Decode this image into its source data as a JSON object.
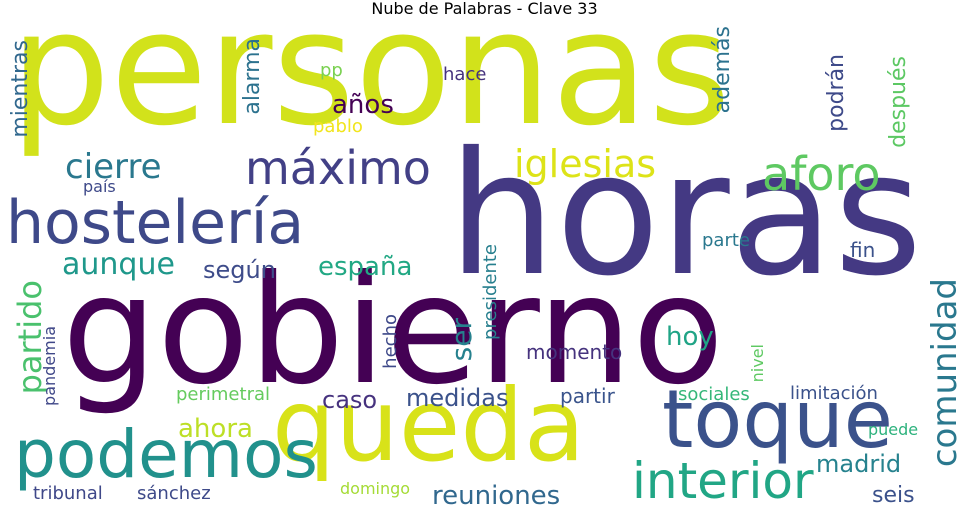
{
  "title": "Nube de Palabras - Clave 33",
  "words": [
    {
      "text": "personas",
      "color": "#d2e21b"
    },
    {
      "text": "horas",
      "color": "#443983"
    },
    {
      "text": "gobierno",
      "color": "#440154"
    },
    {
      "text": "queda",
      "color": "#d8e219"
    },
    {
      "text": "toque",
      "color": "#3b528b"
    },
    {
      "text": "podemos",
      "color": "#21918c"
    },
    {
      "text": "hostelería",
      "color": "#3e4989"
    },
    {
      "text": "interior",
      "color": "#21a685"
    },
    {
      "text": "máximo",
      "color": "#424086"
    },
    {
      "text": "aforo",
      "color": "#5ec962"
    },
    {
      "text": "cierre",
      "color": "#2a788e"
    },
    {
      "text": "iglesias",
      "color": "#dde318"
    },
    {
      "text": "comunidad",
      "color": "#2a788e"
    },
    {
      "text": "partido",
      "color": "#4ac16d"
    },
    {
      "text": "aunque",
      "color": "#1f988b"
    },
    {
      "text": "según",
      "color": "#3e4c8a"
    },
    {
      "text": "españa",
      "color": "#22a884"
    },
    {
      "text": "reuniones",
      "color": "#31688e"
    },
    {
      "text": "medidas",
      "color": "#3b528b"
    },
    {
      "text": "años",
      "color": "#440154"
    },
    {
      "text": "ser",
      "color": "#26818e"
    },
    {
      "text": "hoy",
      "color": "#20a486"
    },
    {
      "text": "ahora",
      "color": "#bddf26"
    },
    {
      "text": "caso",
      "color": "#46327e"
    },
    {
      "text": "madrid",
      "color": "#26828e"
    },
    {
      "text": "seis",
      "color": "#3b518b"
    },
    {
      "text": "alarma",
      "color": "#2c728e"
    },
    {
      "text": "además",
      "color": "#2c728e"
    },
    {
      "text": "podrán",
      "color": "#3e4a89"
    },
    {
      "text": "después",
      "color": "#5cc863"
    },
    {
      "text": "mientras",
      "color": "#31688e"
    },
    {
      "text": "momento",
      "color": "#46337e"
    },
    {
      "text": "perimetral",
      "color": "#65cb5e"
    },
    {
      "text": "partir",
      "color": "#3a548c"
    },
    {
      "text": "sociales",
      "color": "#35b779"
    },
    {
      "text": "limitación",
      "color": "#3b528b"
    },
    {
      "text": "puede",
      "color": "#2db27d"
    },
    {
      "text": "tribunal",
      "color": "#3f4889"
    },
    {
      "text": "sánchez",
      "color": "#3e4a89"
    },
    {
      "text": "domingo",
      "color": "#a5db36"
    },
    {
      "text": "pandemia",
      "color": "#3f4788"
    },
    {
      "text": "hecho",
      "color": "#3e4989"
    },
    {
      "text": "presidente",
      "color": "#277f8e"
    },
    {
      "text": "nivel",
      "color": "#5ec962"
    },
    {
      "text": "parte",
      "color": "#2a788e"
    },
    {
      "text": "fin",
      "color": "#3b528b"
    },
    {
      "text": "hace",
      "color": "#46337e"
    },
    {
      "text": "pp",
      "color": "#7ad151"
    },
    {
      "text": "pablo",
      "color": "#f1e51d"
    },
    {
      "text": "país",
      "color": "#3e4989"
    }
  ]
}
